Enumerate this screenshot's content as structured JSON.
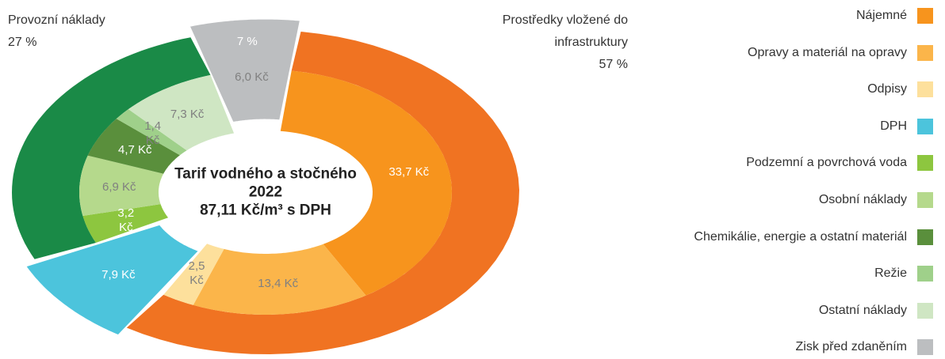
{
  "chart_data": {
    "type": "nested-donut",
    "title": "Tarif vodného a stočného",
    "year": "2022",
    "subtitle": "87,11 Kč/m³ s DPH",
    "groups": [
      {
        "name": "Prostředky vložené do infrastruktury",
        "value": 57,
        "value_label": "57 %",
        "color": "#f07322",
        "explode": false,
        "segments": [
          {
            "name": "Nájemné",
            "value": 33.7,
            "value_label": "33,7 Kč",
            "color": "#f7941d"
          },
          {
            "name": "Opravy a materiál na opravy",
            "value": 13.4,
            "value_label": "13,4 Kč",
            "color": "#fbb54a"
          },
          {
            "name": "Odpisy",
            "value": 2.5,
            "value_label": "2,5 Kč",
            "color": "#fde09c"
          }
        ]
      },
      {
        "value": 9,
        "color": "#4cc4dc",
        "explode": true,
        "segments": [
          {
            "name": "DPH",
            "value": 7.9,
            "value_label": "7,9 Kč",
            "color": "#4cc4dc"
          }
        ]
      },
      {
        "name": "Provozní náklady",
        "value": 27,
        "value_label": "27 %",
        "color": "#1a8a47",
        "explode": false,
        "segments": [
          {
            "name": "Podzemní a povrchová voda",
            "value": 3.2,
            "value_label": "3,2 Kč",
            "color": "#8dc63f"
          },
          {
            "name": "Osobní náklady",
            "value": 6.9,
            "value_label": "6,9 Kč",
            "color": "#b5d98c"
          },
          {
            "name": "Chemikálie, energie a ostatní materiál",
            "value": 4.7,
            "value_label": "4,7 Kč",
            "color": "#5a8f3c"
          },
          {
            "name": "Režie",
            "value": 1.4,
            "value_label": "1,4 Kč",
            "color": "#9fd08a"
          },
          {
            "name": "Ostatní náklady",
            "value": 7.3,
            "value_label": "7,3 Kč",
            "color": "#cfe6c3"
          }
        ]
      },
      {
        "value": 7,
        "value_label": "7 %",
        "color": "#bcbec0",
        "explode": true,
        "segments": [
          {
            "name": "Zisk před zdaněním",
            "value": 6.0,
            "value_label": "6,0 Kč",
            "color": "#bcbec0"
          }
        ]
      }
    ]
  }
}
